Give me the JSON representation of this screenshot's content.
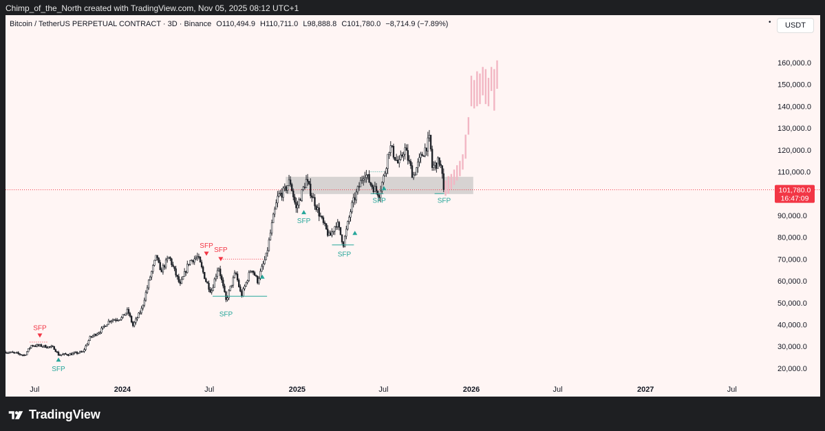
{
  "credit": "Chimp_of_the_North created with TradingView.com, Nov 05, 2025 08:12 UTC+1",
  "header": {
    "symbol": "Bitcoin / TetherUS PERPETUAL CONTRACT · 3D · Binance",
    "open": "O110,494.9",
    "high": "H110,711.0",
    "low": "L98,888.8",
    "close": "C101,780.0",
    "change": "−8,714.9 (−7.89%)",
    "currency_button": "USDT"
  },
  "colors": {
    "background": "#fff5f4",
    "candle": "#1f2228",
    "projection": "#f2b6c3",
    "bullish": "#26a69a",
    "bearish": "#f23645",
    "zone": "#c9c7c7",
    "price_tag": "#f23645"
  },
  "price_tag": {
    "price": "101,780.0",
    "countdown": "16:47:09"
  },
  "footer": {
    "brand": "TradingView"
  },
  "chart_data": {
    "type": "candlestick",
    "y_axis": {
      "min": 14000,
      "max": 171000,
      "ticks": [
        "20,000.0",
        "30,000.0",
        "40,000.0",
        "50,000.0",
        "60,000.0",
        "70,000.0",
        "80,000.0",
        "90,000.0",
        "100,000.0",
        "110,000.0",
        "120,000.0",
        "130,000.0",
        "140,000.0",
        "150,000.0",
        "160,000.0"
      ],
      "tick_values": [
        20000,
        30000,
        40000,
        50000,
        60000,
        70000,
        80000,
        90000,
        100000,
        110000,
        120000,
        130000,
        140000,
        150000,
        160000
      ]
    },
    "x_axis": {
      "min": "2023-05-01",
      "max": "2027-09-10",
      "labels": [
        {
          "date": "2023-07-01",
          "text": "Jul",
          "bold": false
        },
        {
          "date": "2024-01-01",
          "text": "2024",
          "bold": true
        },
        {
          "date": "2024-07-01",
          "text": "Jul",
          "bold": false
        },
        {
          "date": "2025-01-01",
          "text": "2025",
          "bold": true
        },
        {
          "date": "2025-07-01",
          "text": "Jul",
          "bold": false
        },
        {
          "date": "2026-01-01",
          "text": "2026",
          "bold": true
        },
        {
          "date": "2026-07-01",
          "text": "Jul",
          "bold": false
        },
        {
          "date": "2027-01-01",
          "text": "2027",
          "bold": true
        },
        {
          "date": "2027-07-01",
          "text": "Jul",
          "bold": false
        }
      ]
    },
    "current_price": 101780,
    "price_path": [
      [
        "2023-05-01",
        27500
      ],
      [
        "2023-05-20",
        27000
      ],
      [
        "2023-06-10",
        26000
      ],
      [
        "2023-06-24",
        30500
      ],
      [
        "2023-07-15",
        30300
      ],
      [
        "2023-08-10",
        29500
      ],
      [
        "2023-08-20",
        26200
      ],
      [
        "2023-09-15",
        26500
      ],
      [
        "2023-10-10",
        27500
      ],
      [
        "2023-10-25",
        34000
      ],
      [
        "2023-11-15",
        37000
      ],
      [
        "2023-12-05",
        42000
      ],
      [
        "2023-12-30",
        43000
      ],
      [
        "2024-01-12",
        46500
      ],
      [
        "2024-01-23",
        39500
      ],
      [
        "2024-02-10",
        47000
      ],
      [
        "2024-02-28",
        62000
      ],
      [
        "2024-03-13",
        72000
      ],
      [
        "2024-03-20",
        64000
      ],
      [
        "2024-04-08",
        71000
      ],
      [
        "2024-04-20",
        64000
      ],
      [
        "2024-05-01",
        58000
      ],
      [
        "2024-05-20",
        69000
      ],
      [
        "2024-06-07",
        71000
      ],
      [
        "2024-06-24",
        60000
      ],
      [
        "2024-07-05",
        55000
      ],
      [
        "2024-07-20",
        67000
      ],
      [
        "2024-08-05",
        51000
      ],
      [
        "2024-08-25",
        64000
      ],
      [
        "2024-09-06",
        53000
      ],
      [
        "2024-09-27",
        66000
      ],
      [
        "2024-10-10",
        60000
      ],
      [
        "2024-10-29",
        72000
      ],
      [
        "2024-11-11",
        88000
      ],
      [
        "2024-11-22",
        99000
      ],
      [
        "2024-12-05",
        101000
      ],
      [
        "2024-12-17",
        106000
      ],
      [
        "2024-12-30",
        93000
      ],
      [
        "2025-01-20",
        106000
      ],
      [
        "2025-02-03",
        98000
      ],
      [
        "2025-02-25",
        86000
      ],
      [
        "2025-03-10",
        80000
      ],
      [
        "2025-03-25",
        87000
      ],
      [
        "2025-04-08",
        77000
      ],
      [
        "2025-04-25",
        94000
      ],
      [
        "2025-05-12",
        104000
      ],
      [
        "2025-05-22",
        110000
      ],
      [
        "2025-06-05",
        104000
      ],
      [
        "2025-06-22",
        100000
      ],
      [
        "2025-07-03",
        109000
      ],
      [
        "2025-07-14",
        122000
      ],
      [
        "2025-08-02",
        113000
      ],
      [
        "2025-08-14",
        121000
      ],
      [
        "2025-09-01",
        108000
      ],
      [
        "2025-09-18",
        117000
      ],
      [
        "2025-10-06",
        125000
      ],
      [
        "2025-10-11",
        112000
      ],
      [
        "2025-10-27",
        115000
      ],
      [
        "2025-11-05",
        101780
      ]
    ],
    "projection": [
      [
        102000,
        106000,
        99000
      ],
      [
        104000,
        108000,
        100000
      ],
      [
        105000,
        109000,
        102000
      ],
      [
        107000,
        111000,
        104000
      ],
      [
        109000,
        113000,
        106000
      ],
      [
        111000,
        115000,
        108000
      ],
      [
        114000,
        118000,
        111000
      ],
      [
        122000,
        127000,
        116000
      ],
      [
        131000,
        135000,
        127000
      ],
      [
        146000,
        154000,
        140000
      ],
      [
        147000,
        152000,
        139000
      ],
      [
        151000,
        156000,
        140000
      ],
      [
        149000,
        155000,
        141000
      ],
      [
        156000,
        158000,
        145000
      ],
      [
        152000,
        157000,
        141000
      ],
      [
        149000,
        153000,
        140000
      ],
      [
        155000,
        158000,
        147000
      ],
      [
        153000,
        157000,
        138000
      ],
      [
        160000,
        161000,
        148000
      ]
    ],
    "demand_zone": {
      "x_start": "2024-12-08",
      "x_end": "2026-01-05",
      "y_top": 107700,
      "y_bottom": 99800
    },
    "signals": [
      {
        "date": "2023-07-12",
        "price": 34500,
        "label": "SFP",
        "type": "bearish",
        "arrow_y": 35000,
        "label_y": 38800,
        "level": 32000,
        "level_start": "2023-06-21",
        "level_end": "2023-07-28",
        "level_style": "dotted"
      },
      {
        "date": "2023-08-20",
        "price": 23500,
        "label": "SFP",
        "type": "bullish",
        "arrow_y": 24000,
        "label_y": 20000
      },
      {
        "date": "2024-06-25",
        "price": 72000,
        "label": "SFP",
        "type": "bearish",
        "arrow_y": 72500,
        "label_y": 76500
      },
      {
        "date": "2024-07-25",
        "price": 70000,
        "label": "SFP",
        "type": "bearish",
        "arrow_y": 70000,
        "label_y": 74500,
        "level": 70000,
        "level_start": "2024-07-25",
        "level_end": "2024-10-22",
        "level_style": "dotted"
      },
      {
        "date": "2024-08-05",
        "price": 48000,
        "label": "SFP",
        "type": "bullish",
        "label_y": 45000,
        "level": 53000,
        "level_start": "2024-07-08",
        "level_end": "2024-10-30",
        "level_style": "solid"
      },
      {
        "date": "2024-10-20",
        "price": 62000,
        "label": "SFP",
        "type": "bullish",
        "arrow_y": 62000
      },
      {
        "date": "2025-01-15",
        "price": 93000,
        "label": "SFP",
        "type": "bullish",
        "arrow_y": 91500,
        "label_y": 87800
      },
      {
        "date": "2025-04-10",
        "price": 76000,
        "label": "SFP",
        "type": "bullish",
        "label_y": 72500,
        "level": 76500,
        "level_start": "2025-03-15",
        "level_end": "2025-04-30",
        "level_style": "solid"
      },
      {
        "date": "2025-05-02",
        "price": 82000,
        "label": "SFP",
        "type": "bullish",
        "arrow_y": 82000
      },
      {
        "date": "2025-06-22",
        "price": 100000,
        "label": "SFP",
        "type": "bullish",
        "label_y": 97000,
        "level": 100000,
        "level_start": "2025-06-04",
        "level_end": "2025-07-01",
        "level_style": "solid",
        "level2": 110000
      },
      {
        "date": "2025-07-02",
        "price": 102000,
        "label": "SFP",
        "type": "bullish",
        "arrow_y": 102500
      },
      {
        "date": "2025-11-05",
        "price": 99000,
        "label": "SFP",
        "type": "bullish",
        "label_y": 97000,
        "level": 100000,
        "level_start": "2025-10-16",
        "level_end": "2025-11-05",
        "level_style": "solid"
      }
    ]
  }
}
